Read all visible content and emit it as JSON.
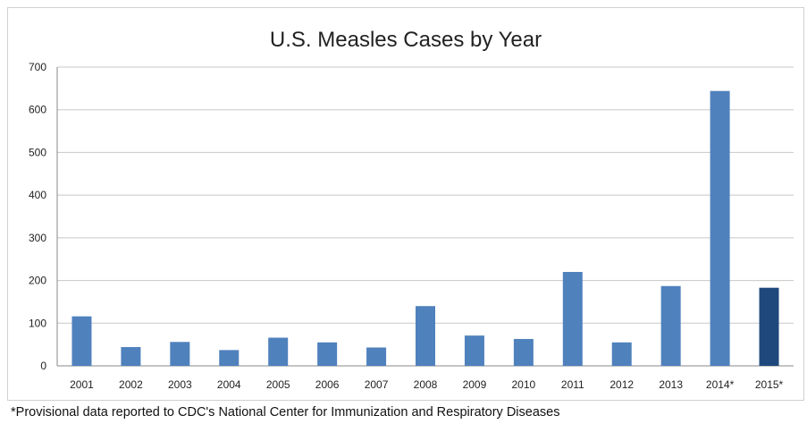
{
  "chart_data": {
    "type": "bar",
    "title": "U.S. Measles Cases by Year",
    "categories": [
      "2001",
      "2002",
      "2003",
      "2004",
      "2005",
      "2006",
      "2007",
      "2008",
      "2009",
      "2010",
      "2011",
      "2012",
      "2013",
      "2014*",
      "2015*"
    ],
    "values": [
      116,
      44,
      56,
      37,
      66,
      55,
      43,
      140,
      71,
      63,
      220,
      55,
      187,
      644,
      183
    ],
    "highlight_index": 14,
    "yticks": [
      "0",
      "100",
      "200",
      "300",
      "400",
      "500",
      "600",
      "700"
    ],
    "ylim": [
      0,
      700
    ],
    "xlabel": "",
    "ylabel": "",
    "grid": true,
    "colors": {
      "bar": "#4f81bd",
      "highlight": "#1f497d",
      "grid": "#c8c8c8",
      "axis": "#888888"
    }
  },
  "footnote": "*Provisional data reported to CDC's National Center for Immunization and Respiratory Diseases"
}
